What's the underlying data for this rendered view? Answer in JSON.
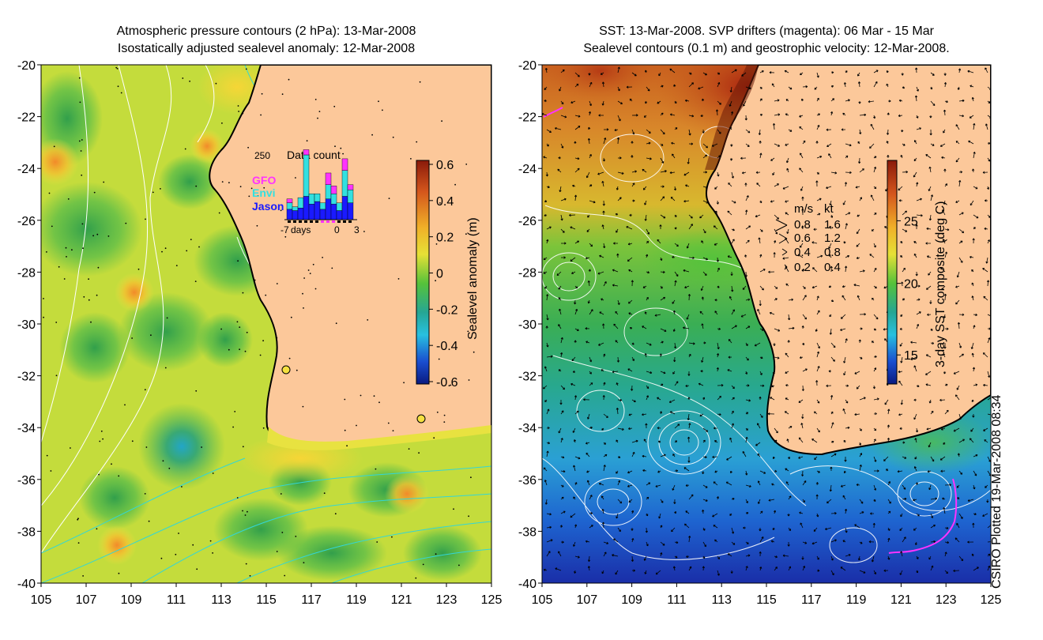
{
  "left_map": {
    "title_line1": "Atmospheric pressure contours (2 hPa): 13-Mar-2008",
    "title_line2": "Isostatically adjusted sealevel anomaly: 12-Mar-2008",
    "y_ticks": [
      "-20",
      "-22",
      "-24",
      "-26",
      "-28",
      "-30",
      "-32",
      "-34",
      "-36",
      "-38",
      "-40"
    ],
    "x_ticks": [
      "105",
      "107",
      "109",
      "111",
      "113",
      "115",
      "117",
      "119",
      "121",
      "123",
      "125"
    ],
    "colorbar_label": "Sealevel anomaly (m)",
    "colorbar_ticks": [
      "0.6",
      "0.4",
      "0.2",
      "0",
      "-0.2",
      "-0.4",
      "-0.6"
    ],
    "inset": {
      "max_label": "250",
      "title": "Data count",
      "legend": [
        {
          "label": "GFO",
          "color": "#ff33ff"
        },
        {
          "label": "Envi",
          "color": "#33e0e0"
        },
        {
          "label": "Jason",
          "color": "#1a1aff"
        }
      ],
      "axis_labels": [
        "-7",
        "days",
        "0",
        "3"
      ],
      "bars": [
        {
          "jason": 40,
          "envi": 25,
          "gfo": 15
        },
        {
          "jason": 35,
          "envi": 15,
          "gfo": 0
        },
        {
          "jason": 45,
          "envi": 40,
          "gfo": 0
        },
        {
          "jason": 90,
          "envi": 160,
          "gfo": 20
        },
        {
          "jason": 60,
          "envi": 40,
          "gfo": 0
        },
        {
          "jason": 70,
          "envi": 30,
          "gfo": 0
        },
        {
          "jason": 40,
          "envi": 25,
          "gfo": 0
        },
        {
          "jason": 80,
          "envi": 55,
          "gfo": 45
        },
        {
          "jason": 60,
          "envi": 40,
          "gfo": 30
        },
        {
          "jason": 35,
          "envi": 30,
          "gfo": 0
        },
        {
          "jason": 90,
          "envi": 100,
          "gfo": 45
        },
        {
          "jason": 65,
          "envi": 50,
          "gfo": 20
        }
      ]
    }
  },
  "right_map": {
    "title_line1": "SST: 13-Mar-2008. SVP drifters (magenta): 06 Mar - 15 Mar",
    "title_line2": "Sealevel contours (0.1 m) and geostrophic velocity: 12-Mar-2008.",
    "y_ticks": [
      "-20",
      "-22",
      "-24",
      "-26",
      "-28",
      "-30",
      "-32",
      "-34",
      "-36",
      "-38",
      "-40"
    ],
    "x_ticks": [
      "105",
      "107",
      "109",
      "111",
      "113",
      "115",
      "117",
      "119",
      "121",
      "123",
      "125"
    ],
    "colorbar_label": "3-day SST composite (deg C)",
    "colorbar_ticks": [
      "25",
      "20",
      "15"
    ],
    "velocity_legend": {
      "header_ms": "m/s",
      "header_kt": "kt",
      "rows": [
        {
          "ms": "0.8",
          "kt": "1.6"
        },
        {
          "ms": "0.6",
          "kt": "1.2"
        },
        {
          "ms": "0.4",
          "kt": "0.8"
        },
        {
          "ms": "0.2",
          "kt": "0.4"
        }
      ]
    }
  },
  "credit": "CSIRO Plotted 19-Mar-2008 08:34",
  "colors": {
    "land": "#fcc89a",
    "coast": "#000000",
    "contour_white": "#ffffff",
    "contour_cyan": "#33d6d6"
  }
}
